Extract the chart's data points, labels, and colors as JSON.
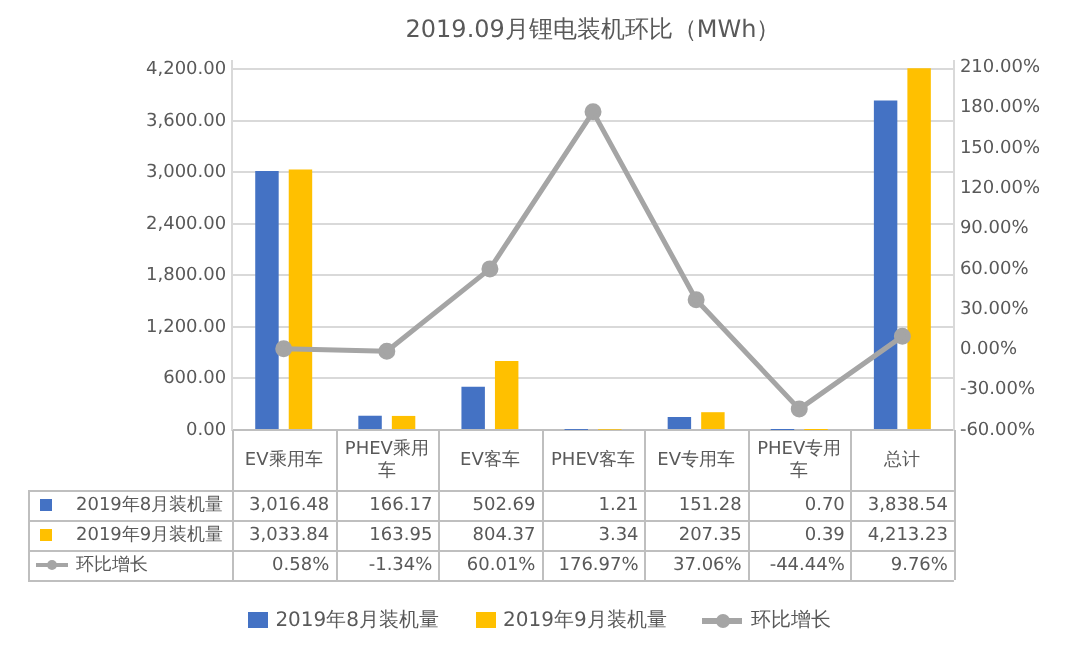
{
  "chart_data": {
    "type": "bar",
    "title": "2019.09月锂电装机环比（MWh）",
    "categories": [
      "EV乘用车",
      "PHEV乘用车",
      "EV客车",
      "PHEV客车",
      "EV专用车",
      "PHEV专用车",
      "总计"
    ],
    "series": [
      {
        "name": "2019年8月装机量",
        "color": "#4472c4",
        "values": [
          3016.48,
          166.17,
          502.69,
          1.21,
          151.28,
          0.7,
          3838.54
        ],
        "value_labels": [
          "3,016.48",
          "166.17",
          "502.69",
          "1.21",
          "151.28",
          "0.70",
          "3,838.54"
        ]
      },
      {
        "name": "2019年9月装机量",
        "color": "#ffc000",
        "values": [
          3033.84,
          163.95,
          804.37,
          3.34,
          207.35,
          0.39,
          4213.23
        ],
        "value_labels": [
          "3,033.84",
          "163.95",
          "804.37",
          "3.34",
          "207.35",
          "0.39",
          "4,213.23"
        ]
      },
      {
        "name": "环比增长",
        "type": "line",
        "axis": "y2",
        "color": "#a5a5a5",
        "values": [
          0.58,
          -1.34,
          60.01,
          176.97,
          37.06,
          -44.44,
          9.76
        ],
        "value_labels": [
          "0.58%",
          "-1.34%",
          "60.01%",
          "176.97%",
          "37.06%",
          "-44.44%",
          "9.76%"
        ]
      }
    ],
    "ylim": [
      0,
      4300
    ],
    "yticks": [
      {
        "value": 0,
        "label": "0.00"
      },
      {
        "value": 600,
        "label": "600.00"
      },
      {
        "value": 1200,
        "label": "1,200.00"
      },
      {
        "value": 1800,
        "label": "1,800.00"
      },
      {
        "value": 2400,
        "label": "2,400.00"
      },
      {
        "value": 3000,
        "label": "3,000.00"
      },
      {
        "value": 3600,
        "label": "3,600.00"
      },
      {
        "value": 4200,
        "label": "4,200.00"
      }
    ],
    "y2lim": [
      -60,
      215
    ],
    "y2ticks": [
      {
        "value": -60,
        "label": "-60.00%"
      },
      {
        "value": -30,
        "label": "-30.00%"
      },
      {
        "value": 0,
        "label": "0.00%"
      },
      {
        "value": 30,
        "label": "30.00%"
      },
      {
        "value": 60,
        "label": "60.00%"
      },
      {
        "value": 90,
        "label": "90.00%"
      },
      {
        "value": 120,
        "label": "120.00%"
      },
      {
        "value": 150,
        "label": "150.00%"
      },
      {
        "value": 180,
        "label": "180.00%"
      },
      {
        "value": 210,
        "label": "210.00%"
      }
    ],
    "grid": "y",
    "legend": "bottom",
    "marker": "circle",
    "line_style": "solid"
  }
}
